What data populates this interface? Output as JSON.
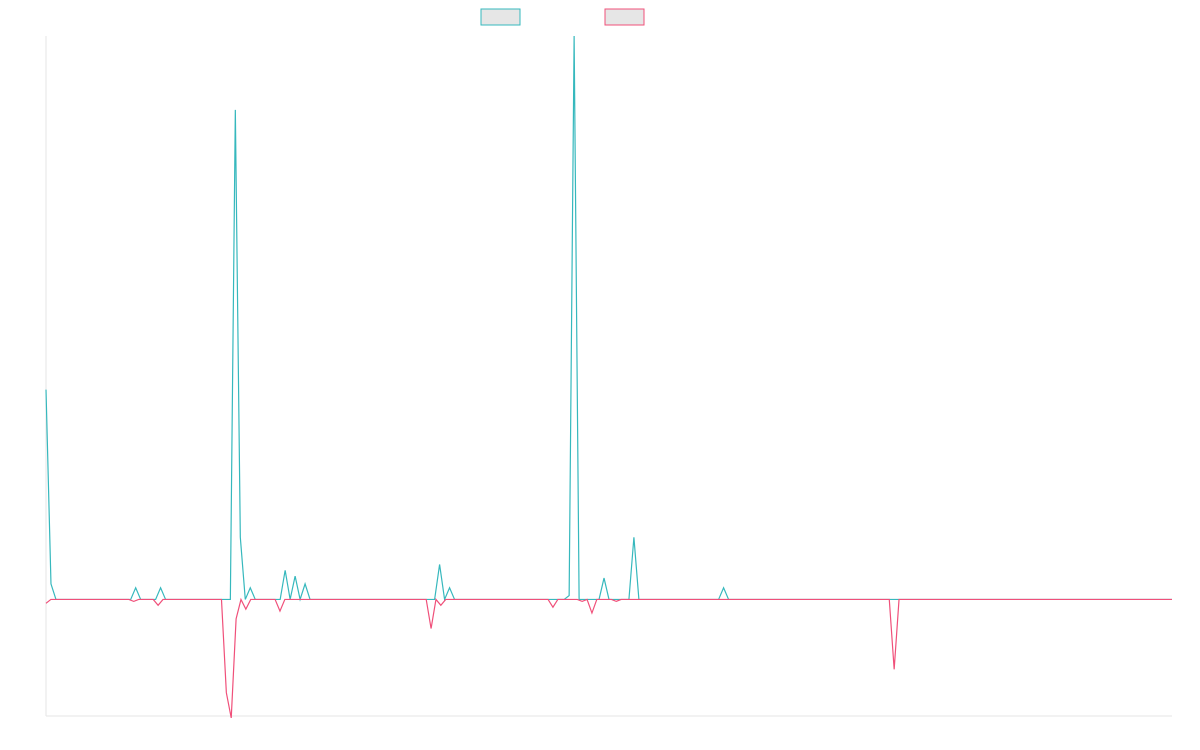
{
  "chart_data": {
    "type": "line",
    "title": "",
    "xlabel": "",
    "ylabel": "",
    "grid": false,
    "legend_position": "top-center",
    "ylim": [
      -60,
      290
    ],
    "series": [
      {
        "name": "",
        "color": "#36b8bd",
        "values": [
          108,
          8,
          0,
          0,
          0,
          0,
          0,
          0,
          0,
          0,
          0,
          0,
          0,
          0,
          0,
          0,
          0,
          0,
          6,
          0,
          0,
          0,
          0,
          6,
          0,
          0,
          0,
          0,
          0,
          0,
          0,
          0,
          0,
          0,
          0,
          0,
          0,
          0,
          252,
          32,
          0,
          6,
          0,
          0,
          0,
          0,
          0,
          0,
          15,
          0,
          12,
          0,
          8,
          0,
          0,
          0,
          0,
          0,
          0,
          0,
          0,
          0,
          0,
          0,
          0,
          0,
          0,
          0,
          0,
          0,
          0,
          0,
          0,
          0,
          0,
          0,
          0,
          0,
          0,
          18,
          0,
          6,
          0,
          0,
          0,
          0,
          0,
          0,
          0,
          0,
          0,
          0,
          0,
          0,
          0,
          0,
          0,
          0,
          0,
          0,
          0,
          0,
          0,
          0,
          0,
          2,
          290,
          0,
          0,
          0,
          0,
          0,
          11,
          0,
          0,
          0,
          0,
          0,
          32,
          0,
          0,
          0,
          0,
          0,
          0,
          0,
          0,
          0,
          0,
          0,
          0,
          0,
          0,
          0,
          0,
          0,
          6,
          0,
          0,
          0,
          0,
          0,
          0,
          0,
          0,
          0,
          0,
          0,
          0,
          0,
          0,
          0,
          0,
          0,
          0,
          0,
          0,
          0,
          0,
          0,
          0,
          0,
          0,
          0,
          0,
          0,
          0,
          0,
          0,
          0,
          0,
          0,
          0,
          0,
          0,
          0,
          0,
          0,
          0,
          0,
          0,
          0,
          0,
          0,
          0,
          0,
          0,
          0,
          0,
          0,
          0,
          0,
          0,
          0,
          0,
          0,
          0,
          0,
          0,
          0,
          0,
          0,
          0,
          0,
          0,
          0,
          0,
          0,
          0,
          0,
          0,
          0,
          0,
          0,
          0,
          0,
          0,
          0,
          0,
          0,
          0,
          0,
          0,
          0,
          0,
          0,
          0
        ]
      },
      {
        "name": "",
        "color": "#f0507a",
        "values": [
          -2,
          0,
          0,
          0,
          0,
          0,
          0,
          0,
          0,
          0,
          0,
          0,
          0,
          0,
          0,
          0,
          0,
          0,
          -1,
          0,
          0,
          0,
          0,
          -3,
          0,
          0,
          0,
          0,
          0,
          0,
          0,
          0,
          0,
          0,
          0,
          0,
          0,
          -48,
          -61,
          -10,
          0,
          -5,
          0,
          0,
          0,
          0,
          0,
          0,
          -6,
          0,
          0,
          0,
          0,
          0,
          0,
          0,
          0,
          0,
          0,
          0,
          0,
          0,
          0,
          0,
          0,
          0,
          0,
          0,
          0,
          0,
          0,
          0,
          0,
          0,
          0,
          0,
          0,
          0,
          0,
          -15,
          0,
          -3,
          0,
          0,
          0,
          0,
          0,
          0,
          0,
          0,
          0,
          0,
          0,
          0,
          0,
          0,
          0,
          0,
          0,
          0,
          0,
          0,
          0,
          0,
          -4,
          0,
          0,
          0,
          0,
          0,
          -1,
          0,
          -7,
          0,
          0,
          0,
          0,
          -1,
          0,
          0,
          0,
          0,
          0,
          0,
          0,
          0,
          0,
          0,
          0,
          0,
          0,
          0,
          0,
          0,
          0,
          0,
          0,
          0,
          0,
          0,
          0,
          0,
          0,
          0,
          0,
          0,
          0,
          0,
          0,
          0,
          0,
          0,
          0,
          0,
          0,
          0,
          0,
          0,
          0,
          0,
          0,
          0,
          0,
          0,
          0,
          0,
          0,
          0,
          0,
          0,
          0,
          0,
          0,
          0,
          -36,
          0,
          0,
          0,
          0,
          0,
          0,
          0,
          0,
          0,
          0,
          0,
          0,
          0,
          0,
          0,
          0,
          0,
          0,
          0,
          0,
          0,
          0,
          0,
          0,
          0,
          0,
          0,
          0,
          0,
          0,
          0,
          0,
          0,
          0,
          0,
          0,
          0,
          0,
          0,
          0,
          0,
          0,
          0,
          0,
          0,
          0,
          0,
          0,
          0,
          0,
          0,
          0,
          0,
          0,
          0,
          0,
          0
        ]
      }
    ]
  }
}
